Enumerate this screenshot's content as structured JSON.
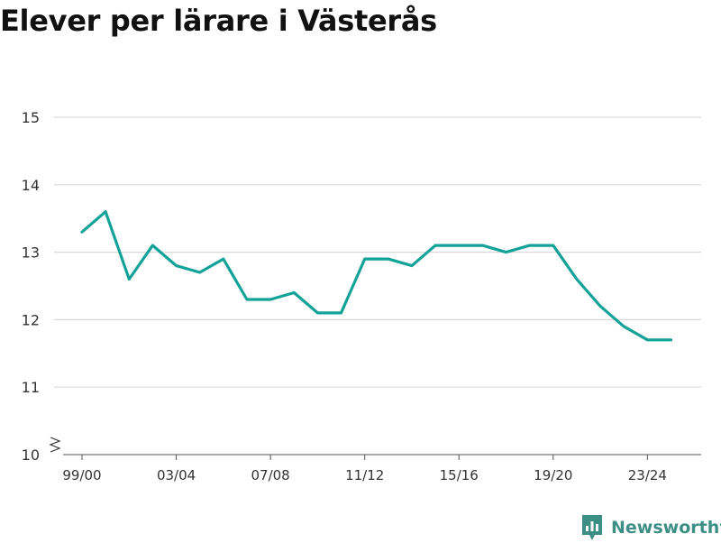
{
  "title": "Elever per lärare i Västerås",
  "brand": {
    "name": "Newsworthy",
    "icon": "newsworthy-logo-icon",
    "color": "#3d8f86"
  },
  "chart_data": {
    "type": "line",
    "title": "Elever per lärare i Västerås",
    "xlabel": "",
    "ylabel": "",
    "ylim": [
      10,
      15
    ],
    "yticks": [
      10,
      11,
      12,
      13,
      14,
      15
    ],
    "y_axis_break": true,
    "grid": true,
    "x": [
      "99/00",
      "00/01",
      "01/02",
      "02/03",
      "03/04",
      "04/05",
      "05/06",
      "06/07",
      "07/08",
      "08/09",
      "09/10",
      "10/11",
      "11/12",
      "12/13",
      "13/14",
      "14/15",
      "15/16",
      "16/17",
      "17/18",
      "18/19",
      "19/20",
      "20/21",
      "21/22",
      "22/23",
      "23/24",
      "24/25"
    ],
    "xtick_labels": [
      "99/00",
      "03/04",
      "07/08",
      "11/12",
      "15/16",
      "19/20",
      "23/24"
    ],
    "series": [
      {
        "color": "#12a298",
        "values": [
          13.3,
          13.6,
          12.6,
          13.1,
          12.8,
          12.7,
          12.9,
          12.3,
          12.3,
          12.4,
          12.1,
          12.1,
          12.9,
          12.9,
          12.8,
          13.1,
          13.1,
          13.1,
          13.0,
          13.1,
          13.1,
          12.6,
          12.2,
          11.9,
          11.7,
          11.7
        ]
      }
    ]
  }
}
